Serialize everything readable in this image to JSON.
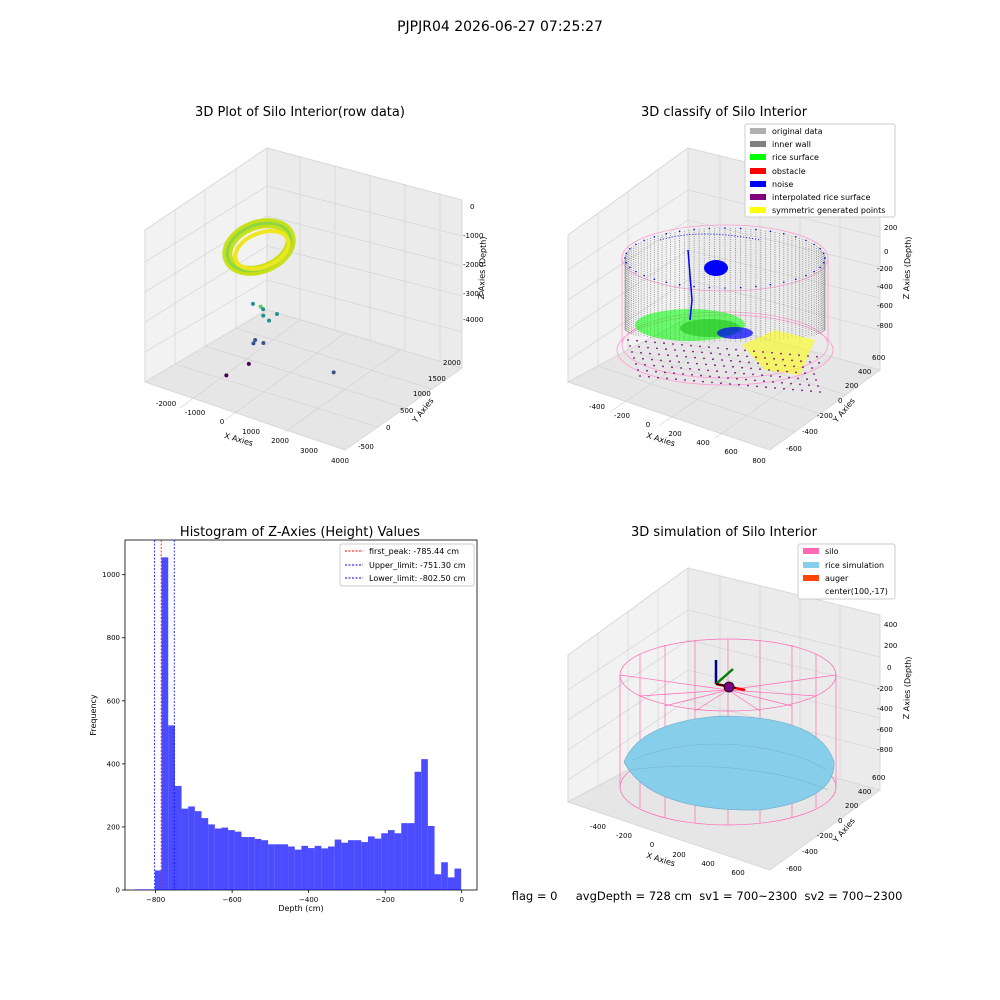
{
  "suptitle": "PJPJR04 2026-06-27 07:25:27",
  "status_line": "flag = 0     avgDepth = 728 cm  sv1 = 700~2300  sv2 = 700~2300",
  "chart_data": [
    {
      "type": "scatter",
      "projection": "3d",
      "title": "3D Plot of Silo Interior(row data)",
      "xlabel": "X Axies",
      "ylabel": "Y Axies",
      "zlabel": "Z Axies (Depth)",
      "xticks": [
        "-2000",
        "-1000",
        "0",
        "1000",
        "2000",
        "3000",
        "4000"
      ],
      "yticks": [
        "-500",
        "0",
        "500",
        "1000",
        "1500",
        "2000"
      ],
      "zticks": [
        "0",
        "-1000",
        "-2000",
        "-3000",
        "-4000"
      ],
      "xlim": [
        -2300,
        4000
      ],
      "ylim": [
        -700,
        2200
      ],
      "zlim": [
        -4300,
        0
      ],
      "colormap": "viridis",
      "points": [
        {
          "x": -170,
          "y": 300,
          "z": -2250
        },
        {
          "x": 180,
          "y": 280,
          "z": -2450
        },
        {
          "x": 200,
          "y": 200,
          "z": -2150
        },
        {
          "x": 400,
          "y": 250,
          "z": -2500
        },
        {
          "x": 100,
          "y": 100,
          "z": -3100
        },
        {
          "x": 350,
          "y": 150,
          "z": -3050
        },
        {
          "x": 650,
          "y": 250,
          "z": -2250
        },
        {
          "x": 2500,
          "y": 200,
          "z": -3250
        },
        {
          "x": -300,
          "y": 300,
          "z": -3900
        },
        {
          "x": -500,
          "y": -100,
          "z": -4000
        },
        {
          "x": -100,
          "y": 300,
          "z": -3200
        },
        {
          "x": 150,
          "y": 300,
          "z": -2300
        }
      ],
      "main_cluster": "dense ring of points near x≈0, y≈0, z≈-700 (yellow-green)"
    },
    {
      "type": "scatter",
      "projection": "3d",
      "title": "3D classify of Silo Interior",
      "xlabel": "X Axies",
      "ylabel": "Y Axies",
      "zlabel": "Z Axies (Depth)",
      "xticks": [
        "-400",
        "-200",
        "0",
        "200",
        "400",
        "600",
        "800"
      ],
      "yticks": [
        "-600",
        "-400",
        "-200",
        "0",
        "200",
        "400",
        "600"
      ],
      "zticks": [
        "200",
        "0",
        "-200",
        "-400",
        "-600",
        "-800"
      ],
      "xlim": [
        -500,
        850
      ],
      "ylim": [
        -700,
        700
      ],
      "zlim": [
        -950,
        300
      ],
      "legend_position": "top-right",
      "legend": [
        {
          "label": "original data",
          "color": "#b0b0b0"
        },
        {
          "label": "inner wall",
          "color": "#808080"
        },
        {
          "label": "rice surface",
          "color": "#00ff00"
        },
        {
          "label": "obstacle",
          "color": "#ff0000"
        },
        {
          "label": "noise",
          "color": "#0000ff"
        },
        {
          "label": "interpolated rice surface",
          "color": "#800080"
        },
        {
          "label": "symmetric generated points",
          "color": "#ffff00"
        }
      ],
      "silo_outline_color": "#ff9ad0"
    },
    {
      "type": "histogram",
      "title": "Histogram of Z-Axies (Height) Values",
      "xlabel": "Depth (cm)",
      "ylabel": "Frequency",
      "xlim": [
        -880,
        40
      ],
      "ylim": [
        0,
        1110
      ],
      "xticks": [
        -800,
        -600,
        -400,
        -200,
        0
      ],
      "yticks": [
        0,
        200,
        400,
        600,
        800,
        1000
      ],
      "bar_color": "#0000ff",
      "bin_width": 17.4,
      "bins": [
        {
          "left": -854.0,
          "count": 2
        },
        {
          "left": -836.6,
          "count": 2
        },
        {
          "left": -819.2,
          "count": 2
        },
        {
          "left": -801.8,
          "count": 62
        },
        {
          "left": -784.4,
          "count": 1055
        },
        {
          "left": -767.0,
          "count": 522
        },
        {
          "left": -749.6,
          "count": 330
        },
        {
          "left": -732.2,
          "count": 258
        },
        {
          "left": -714.8,
          "count": 265
        },
        {
          "left": -697.4,
          "count": 250
        },
        {
          "left": -680.0,
          "count": 228
        },
        {
          "left": -662.6,
          "count": 208
        },
        {
          "left": -645.2,
          "count": 195
        },
        {
          "left": -627.8,
          "count": 198
        },
        {
          "left": -610.4,
          "count": 190
        },
        {
          "left": -593.0,
          "count": 185
        },
        {
          "left": -575.6,
          "count": 168
        },
        {
          "left": -558.2,
          "count": 168
        },
        {
          "left": -540.8,
          "count": 162
        },
        {
          "left": -523.4,
          "count": 158
        },
        {
          "left": -506.0,
          "count": 145
        },
        {
          "left": -488.6,
          "count": 145
        },
        {
          "left": -471.2,
          "count": 145
        },
        {
          "left": -453.8,
          "count": 138
        },
        {
          "left": -436.4,
          "count": 128
        },
        {
          "left": -419.0,
          "count": 140
        },
        {
          "left": -401.6,
          "count": 133
        },
        {
          "left": -384.2,
          "count": 140
        },
        {
          "left": -366.8,
          "count": 132
        },
        {
          "left": -349.4,
          "count": 138
        },
        {
          "left": -332.0,
          "count": 160
        },
        {
          "left": -314.6,
          "count": 150
        },
        {
          "left": -297.2,
          "count": 158
        },
        {
          "left": -279.8,
          "count": 158
        },
        {
          "left": -262.4,
          "count": 152
        },
        {
          "left": -245.0,
          "count": 170
        },
        {
          "left": -227.6,
          "count": 163
        },
        {
          "left": -210.2,
          "count": 180
        },
        {
          "left": -192.8,
          "count": 190
        },
        {
          "left": -175.4,
          "count": 180
        },
        {
          "left": -158.0,
          "count": 212
        },
        {
          "left": -140.6,
          "count": 212
        },
        {
          "left": -123.2,
          "count": 375
        },
        {
          "left": -105.8,
          "count": 415
        },
        {
          "left": -88.4,
          "count": 203
        },
        {
          "left": -71.0,
          "count": 50
        },
        {
          "left": -53.6,
          "count": 88
        },
        {
          "left": -36.2,
          "count": 40
        },
        {
          "left": -18.8,
          "count": 68
        }
      ],
      "vlines": [
        {
          "x": -785.44,
          "color": "#ff0000",
          "label": "first_peak: -785.44 cm"
        },
        {
          "x": -751.3,
          "color": "#0000ff",
          "label": "Upper_limit: -751.30 cm"
        },
        {
          "x": -802.5,
          "color": "#0000ff",
          "label": "Lower_limit: -802.50 cm"
        }
      ],
      "legend_position": "top-right"
    },
    {
      "type": "surface",
      "projection": "3d",
      "title": "3D simulation of Silo Interior",
      "xlabel": "X Axies",
      "ylabel": "Y Axies",
      "zlabel": "Z Axies (Depth)",
      "xticks": [
        "-400",
        "-200",
        "0",
        "200",
        "400",
        "600"
      ],
      "yticks": [
        "-600",
        "-400",
        "-200",
        "0",
        "200",
        "400",
        "600"
      ],
      "zticks": [
        "400",
        "200",
        "0",
        "-200",
        "-400",
        "-600",
        "-800"
      ],
      "xlim": [
        -500,
        750
      ],
      "ylim": [
        -700,
        700
      ],
      "zlim": [
        -950,
        450
      ],
      "legend_position": "top-right",
      "legend": [
        {
          "label": "silo",
          "color": "#ff69b4"
        },
        {
          "label": "rice simulation",
          "color": "#87ceeb"
        },
        {
          "label": "auger",
          "color": "#ff4500"
        },
        {
          "label": "center(100,-17)",
          "color": ""
        }
      ]
    }
  ]
}
